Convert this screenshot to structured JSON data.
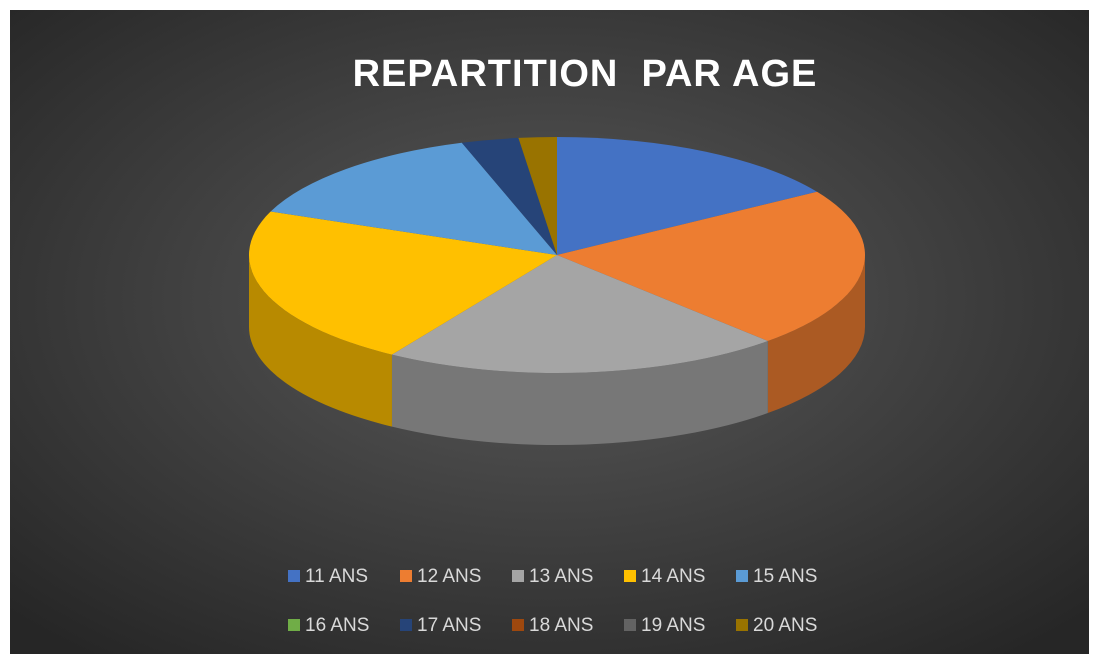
{
  "chart_data": {
    "type": "pie3d",
    "title": "REPARTITION  PAR AGE",
    "categories": [
      "11 ANS",
      "12 ANS",
      "13 ANS",
      "14 ANS",
      "15 ANS",
      "16 ANS",
      "17 ANS",
      "18 ANS",
      "19 ANS",
      "20 ANS"
    ],
    "values": [
      16,
      22,
      21,
      22,
      14,
      0,
      3,
      0,
      0,
      2
    ],
    "colors": [
      "#4472c4",
      "#ed7d31",
      "#a5a5a5",
      "#ffc000",
      "#5b9bd5",
      "#70ad47",
      "#264478",
      "#9e480e",
      "#636363",
      "#997300"
    ],
    "legend": "bottom"
  }
}
